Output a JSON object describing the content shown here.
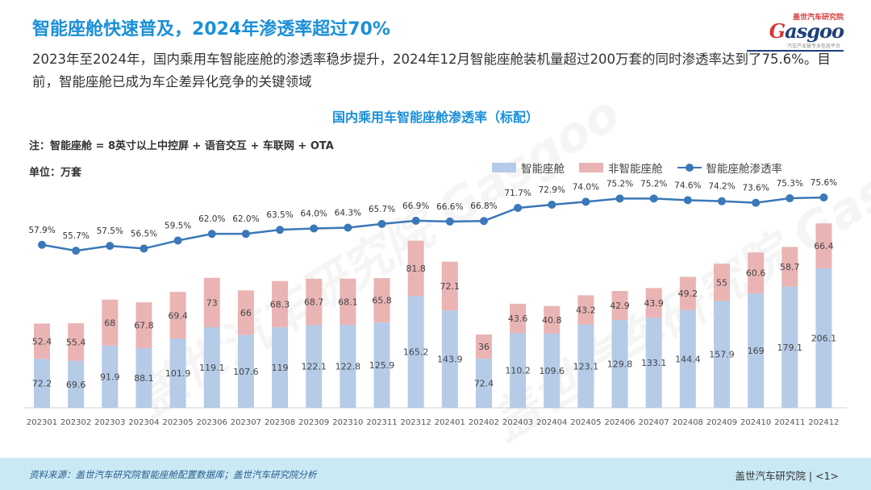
{
  "headline": "智能座舱快速普及，2024年渗透率超过70%",
  "description": "2023年至2024年，国内乘用车智能座舱的渗透率稳步提升，2024年12月智能座舱装机量超过200万套的同时渗透率达到了75.6%。目前，智能座舱已成为车企差异化竞争的关键领域",
  "logo": {
    "cn": "盖世汽车研究院",
    "word_g": "G",
    "word_rest": "asgoo",
    "tagline": "汽车产业链专业信息平台"
  },
  "note": "注：智能座舱 = 8英寸以上中控屏 + 语音交互 + 车联网 + OTA",
  "unit": "单位：万套",
  "footer": {
    "source": "资料来源：盖世汽车研究院智能座舱配置数据库；盖世汽车研究院分析",
    "org": "盖世汽车研究院 | <1>"
  },
  "watermark_text": "盖世汽车研究院 Gasgoo",
  "colors": {
    "smart": "#b5cbe8",
    "nonsmart": "#eab4b4",
    "line": "#3a78b8",
    "accent": "#1a8fd8"
  },
  "chart_data": {
    "type": "bar",
    "stacked": true,
    "title": "国内乘用车智能座舱渗透率（标配）",
    "categories": [
      "202301",
      "202302",
      "202303",
      "202304",
      "202305",
      "202306",
      "202307",
      "202308",
      "202309",
      "202310",
      "202311",
      "202312",
      "202401",
      "202402",
      "202403",
      "202404",
      "202405",
      "202406",
      "202407",
      "202408",
      "202409",
      "202410",
      "202411",
      "202412"
    ],
    "series": [
      {
        "name": "智能座舱",
        "kind": "bar",
        "values": [
          72.2,
          69.6,
          91.9,
          88.1,
          101.9,
          119.1,
          107.6,
          119,
          122.1,
          122.8,
          125.9,
          165.2,
          143.9,
          72.4,
          110.2,
          109.6,
          123.1,
          129.8,
          133.1,
          144.4,
          157.9,
          169,
          179.1,
          206.1
        ]
      },
      {
        "name": "非智能座舱",
        "kind": "bar",
        "values": [
          52.4,
          55.4,
          68,
          67.8,
          69.4,
          73,
          66,
          68.3,
          68.7,
          68.1,
          65.8,
          81.8,
          72.1,
          36,
          43.6,
          40.8,
          43.2,
          42.9,
          43.9,
          49.2,
          55,
          60.6,
          58.7,
          66.4
        ]
      },
      {
        "name": "智能座舱渗透率",
        "kind": "line",
        "unit": "%",
        "values": [
          57.9,
          55.7,
          57.5,
          56.5,
          59.5,
          62.0,
          62.0,
          63.5,
          64.0,
          64.3,
          65.7,
          66.9,
          66.6,
          66.8,
          71.7,
          72.9,
          74.0,
          75.2,
          75.2,
          74.6,
          74.2,
          73.6,
          75.3,
          75.6
        ]
      }
    ],
    "line_labels": [
      "57.9%",
      "55.7%",
      "57.5%",
      "56.5%",
      "59.5%",
      "62.0%",
      "62.0%",
      "63.5%",
      "64.0%",
      "64.3%",
      "65.7%",
      "66.9%",
      "66.6%",
      "66.8%",
      "71.7%",
      "72.9%",
      "74.0%",
      "75.2%",
      "75.2%",
      "74.6%",
      "74.2%",
      "73.6%",
      "75.3%",
      "75.6%"
    ],
    "bar_ylim": [
      0,
      300
    ],
    "line_ylim": [
      0,
      80
    ],
    "legend": [
      "智能座舱",
      "非智能座舱",
      "智能座舱渗透率"
    ],
    "legend_position": "top-right"
  }
}
